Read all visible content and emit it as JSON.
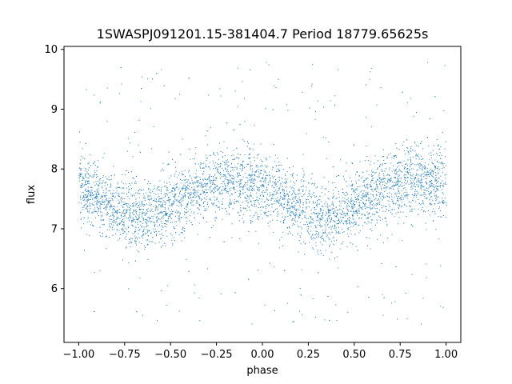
{
  "chart_data": {
    "type": "scatter",
    "title": "1SWASPJ091201.15-381404.7 Period 18779.65625s",
    "xlabel": "phase",
    "ylabel": "flux",
    "xlim": [
      -1.08,
      1.08
    ],
    "ylim": [
      5.1,
      10.05
    ],
    "xticks": [
      -1.0,
      -0.75,
      -0.5,
      -0.25,
      0.0,
      0.25,
      0.5,
      0.75,
      1.0
    ],
    "xtick_labels": [
      "−1.00",
      "−0.75",
      "−0.50",
      "−0.25",
      "0.00",
      "0.25",
      "0.50",
      "0.75",
      "1.00"
    ],
    "yticks": [
      6,
      7,
      8,
      9,
      10
    ],
    "ytick_labels": [
      "6",
      "7",
      "8",
      "9",
      "10"
    ],
    "grid": false,
    "legend": "none",
    "series": [
      {
        "color": "#1f77b4",
        "marker_size": 1,
        "phase_range": [
          -1.0,
          1.0
        ],
        "period_in_phase": 1.0,
        "curve": {
          "phase": [
            0.0,
            0.1,
            0.2,
            0.3,
            0.4,
            0.5,
            0.6,
            0.7,
            0.8,
            0.9,
            1.0
          ],
          "flux": [
            7.68,
            7.55,
            7.35,
            7.22,
            7.25,
            7.38,
            7.58,
            7.72,
            7.82,
            7.78,
            7.68
          ]
        },
        "scatter_sigma": 0.28,
        "outlier_flux_range": [
          5.4,
          9.8
        ]
      }
    ]
  }
}
